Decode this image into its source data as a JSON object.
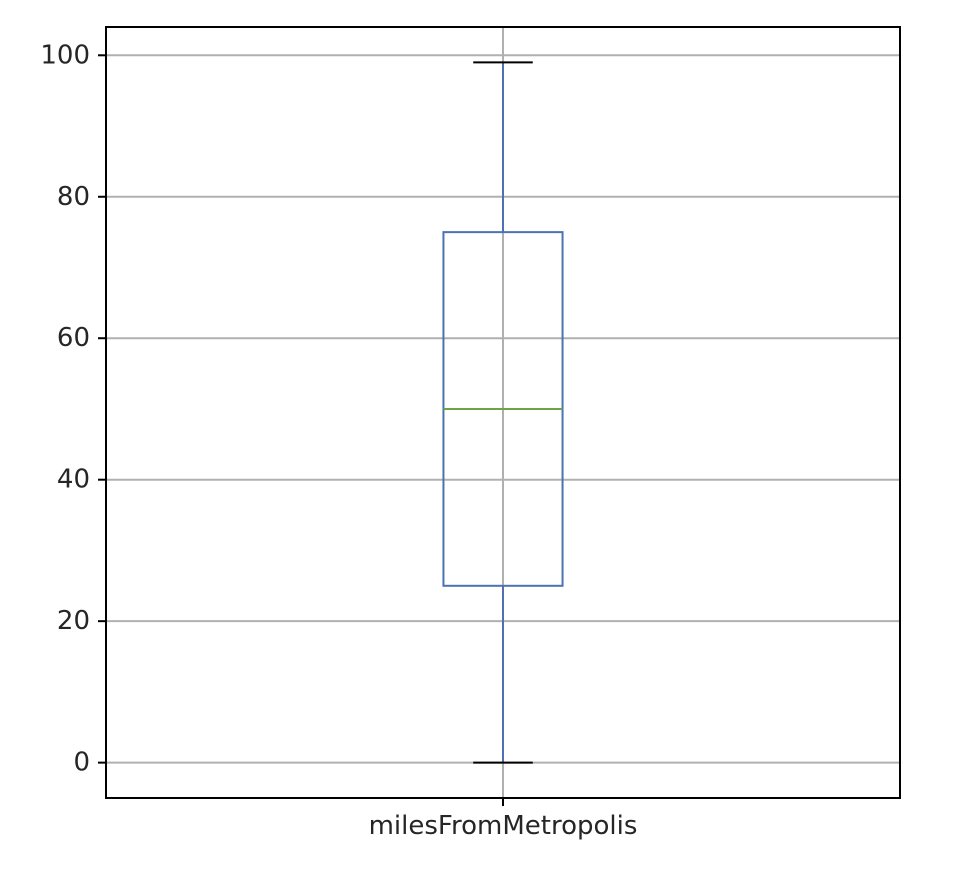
{
  "chart_data": {
    "type": "box",
    "title": "",
    "xlabel": "",
    "ylabel": "",
    "categories": [
      "milesFromMetropolis"
    ],
    "boxes": [
      {
        "name": "milesFromMetropolis",
        "whisker_low": 0,
        "q1": 25,
        "median": 50,
        "q3": 75,
        "whisker_high": 99
      }
    ],
    "ylim": [
      -5,
      104
    ],
    "yticks": [
      0,
      20,
      40,
      60,
      80,
      100
    ],
    "grid": true,
    "legend": "none",
    "colors": {
      "box": "#4c72b0",
      "median": "#6ca644",
      "whisker_cap": "#000000",
      "grid": "#b0b0b0",
      "frame": "#000000"
    }
  }
}
